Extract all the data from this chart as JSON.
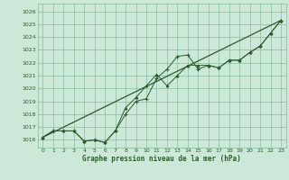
{
  "title": "Graphe pression niveau de la mer (hPa)",
  "bg_color": "#cce8d8",
  "grid_color": "#88bb99",
  "line_color": "#2d5a2d",
  "xlim": [
    -0.5,
    23.5
  ],
  "ylim": [
    1015.4,
    1026.6
  ],
  "yticks": [
    1016,
    1017,
    1018,
    1019,
    1020,
    1021,
    1022,
    1023,
    1024,
    1025,
    1026
  ],
  "xticks": [
    0,
    1,
    2,
    3,
    4,
    5,
    6,
    7,
    8,
    9,
    10,
    11,
    12,
    13,
    14,
    15,
    16,
    17,
    18,
    19,
    20,
    21,
    22,
    23
  ],
  "series0_x": [
    0,
    1,
    2,
    3,
    4,
    5,
    6,
    7,
    8,
    9,
    10,
    11,
    12,
    13,
    14,
    15,
    16,
    17,
    18,
    19,
    20,
    21,
    22,
    23
  ],
  "series0_y": [
    1016.2,
    1016.7,
    1016.7,
    1016.7,
    1015.9,
    1016.0,
    1015.8,
    1016.7,
    1018.0,
    1019.0,
    1019.2,
    1020.8,
    1021.5,
    1022.5,
    1022.6,
    1021.5,
    1021.8,
    1021.6,
    1022.2,
    1022.2,
    1022.8,
    1023.3,
    1024.3,
    1025.3
  ],
  "series1_x": [
    0,
    1,
    2,
    3,
    4,
    5,
    6,
    7,
    8,
    9,
    10,
    11,
    12,
    13,
    14,
    15,
    16,
    17,
    18,
    19,
    20,
    21,
    22,
    23
  ],
  "series1_y": [
    1016.2,
    1016.7,
    1016.7,
    1016.7,
    1015.9,
    1016.0,
    1015.8,
    1016.7,
    1018.5,
    1019.3,
    1020.2,
    1021.1,
    1020.2,
    1021.0,
    1021.8,
    1021.8,
    1021.8,
    1021.6,
    1022.2,
    1022.2,
    1022.8,
    1023.3,
    1024.3,
    1025.3
  ],
  "series2_x": [
    0,
    23
  ],
  "series2_y": [
    1016.2,
    1025.3
  ]
}
